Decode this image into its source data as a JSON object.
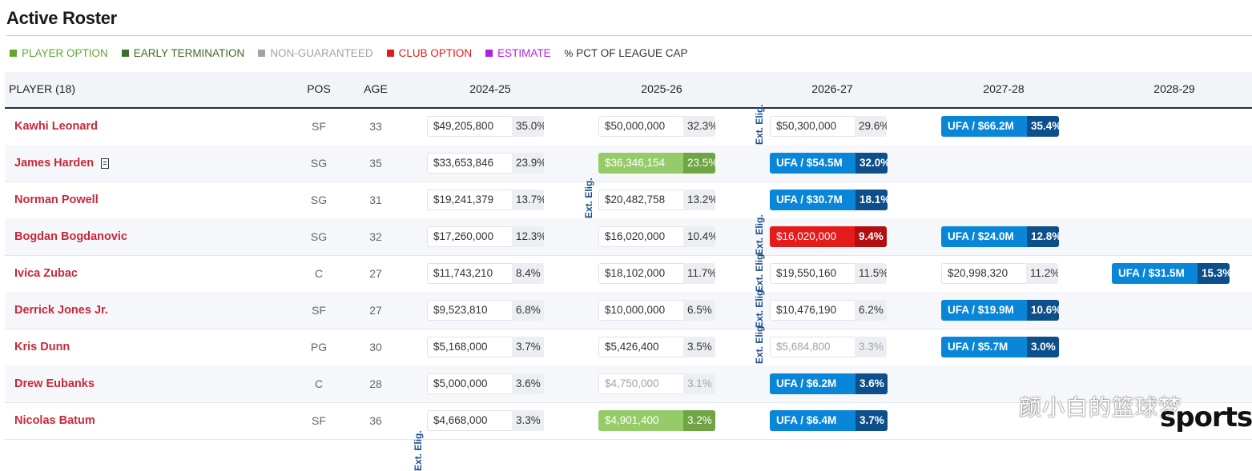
{
  "title": "Active Roster",
  "legend": [
    {
      "label": "PLAYER OPTION",
      "color": "#5fa830"
    },
    {
      "label": "EARLY TERMINATION",
      "color": "#3e6b25"
    },
    {
      "label": "NON-GUARANTEED",
      "color": "#a0a3a8"
    },
    {
      "label": "CLUB OPTION",
      "color": "#e31b1b"
    },
    {
      "label": "ESTIMATE",
      "color": "#b31ee0"
    },
    {
      "label": "PCT OF LEAGUE CAP",
      "color": "#333333",
      "glyph": "%"
    }
  ],
  "columns": {
    "player": "PLAYER (18)",
    "pos": "POS",
    "age": "AGE",
    "seasons": [
      "2024-25",
      "2025-26",
      "2026-27",
      "2027-28",
      "2028-29"
    ]
  },
  "ext_label": "Ext. Elig.",
  "rows": [
    {
      "name": "Kawhi Leonard",
      "pos": "SF",
      "age": "33",
      "cells": [
        {
          "amt": "$49,205,800",
          "pct": "35.0%",
          "type": "normal"
        },
        {
          "amt": "$50,000,000",
          "pct": "32.3%",
          "type": "normal"
        },
        {
          "amt": "$50,300,000",
          "pct": "29.6%",
          "type": "normal"
        },
        {
          "amt": "UFA / $66.2M",
          "pct": "35.4%",
          "type": "ufa"
        },
        null
      ]
    },
    {
      "name": "James Harden",
      "note": true,
      "pos": "SG",
      "age": "35",
      "cells": [
        {
          "amt": "$33,653,846",
          "pct": "23.9%",
          "type": "normal"
        },
        {
          "amt": "$36,346,154",
          "pct": "23.5%",
          "type": "player"
        },
        {
          "amt": "UFA / $54.5M",
          "pct": "32.0%",
          "type": "ufa"
        },
        null,
        null
      ]
    },
    {
      "name": "Norman Powell",
      "pos": "SG",
      "age": "31",
      "cells": [
        {
          "amt": "$19,241,379",
          "pct": "13.7%",
          "type": "normal"
        },
        {
          "amt": "$20,482,758",
          "pct": "13.2%",
          "type": "normal"
        },
        {
          "amt": "UFA / $30.7M",
          "pct": "18.1%",
          "type": "ufa"
        },
        null,
        null
      ]
    },
    {
      "name": "Bogdan Bogdanovic",
      "pos": "SG",
      "age": "32",
      "cells": [
        {
          "amt": "$17,260,000",
          "pct": "12.3%",
          "type": "normal"
        },
        {
          "amt": "$16,020,000",
          "pct": "10.4%",
          "type": "normal"
        },
        {
          "amt": "$16,020,000",
          "pct": "9.4%",
          "type": "club"
        },
        {
          "amt": "UFA / $24.0M",
          "pct": "12.8%",
          "type": "ufa"
        },
        null
      ]
    },
    {
      "name": "Ivica Zubac",
      "pos": "C",
      "age": "27",
      "cells": [
        {
          "amt": "$11,743,210",
          "pct": "8.4%",
          "type": "normal"
        },
        {
          "amt": "$18,102,000",
          "pct": "11.7%",
          "type": "normal"
        },
        {
          "amt": "$19,550,160",
          "pct": "11.5%",
          "type": "normal"
        },
        {
          "amt": "$20,998,320",
          "pct": "11.2%",
          "type": "normal"
        },
        {
          "amt": "UFA / $31.5M",
          "pct": "15.3%",
          "type": "ufa"
        }
      ]
    },
    {
      "name": "Derrick Jones Jr.",
      "pos": "SF",
      "age": "27",
      "cells": [
        {
          "amt": "$9,523,810",
          "pct": "6.8%",
          "type": "normal"
        },
        {
          "amt": "$10,000,000",
          "pct": "6.5%",
          "type": "normal"
        },
        {
          "amt": "$10,476,190",
          "pct": "6.2%",
          "type": "normal"
        },
        {
          "amt": "UFA / $19.9M",
          "pct": "10.6%",
          "type": "ufa"
        },
        null
      ]
    },
    {
      "name": "Kris Dunn",
      "pos": "PG",
      "age": "30",
      "cells": [
        {
          "amt": "$5,168,000",
          "pct": "3.7%",
          "type": "normal"
        },
        {
          "amt": "$5,426,400",
          "pct": "3.5%",
          "type": "normal"
        },
        {
          "amt": "$5,684,800",
          "pct": "3.3%",
          "type": "gray"
        },
        {
          "amt": "UFA / $5.7M",
          "pct": "3.0%",
          "type": "ufa"
        },
        null
      ]
    },
    {
      "name": "Drew Eubanks",
      "pos": "C",
      "age": "28",
      "cells": [
        {
          "amt": "$5,000,000",
          "pct": "3.6%",
          "type": "normal"
        },
        {
          "amt": "$4,750,000",
          "pct": "3.1%",
          "type": "gray"
        },
        {
          "amt": "UFA / $6.2M",
          "pct": "3.6%",
          "type": "ufa"
        },
        null,
        null
      ]
    },
    {
      "name": "Nicolas Batum",
      "pos": "SF",
      "age": "36",
      "cells": [
        {
          "amt": "$4,668,000",
          "pct": "3.3%",
          "type": "normal"
        },
        {
          "amt": "$4,901,400",
          "pct": "3.2%",
          "type": "player"
        },
        {
          "amt": "UFA / $6.4M",
          "pct": "3.7%",
          "type": "ufa"
        },
        null,
        null
      ]
    }
  ],
  "watermark": {
    "chinese": "颜小白的篮球梦",
    "english": "sports"
  }
}
